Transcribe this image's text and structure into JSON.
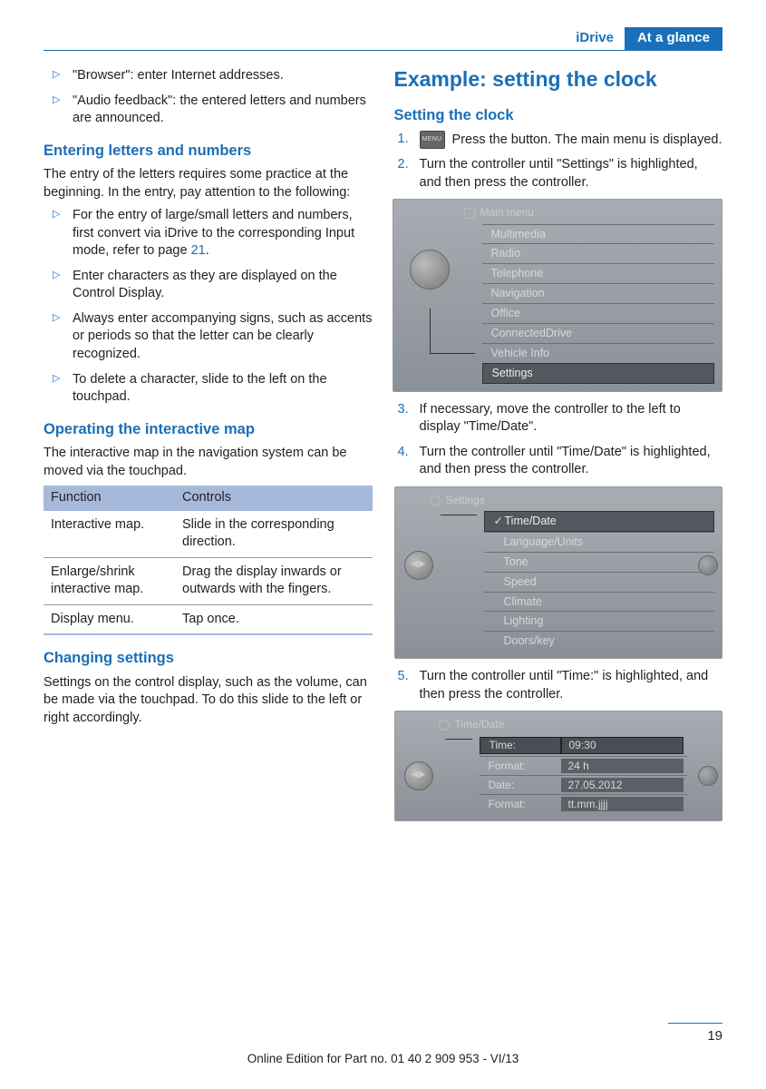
{
  "header": {
    "left": "iDrive",
    "right": "At a glance"
  },
  "left_col": {
    "top_bullets": [
      "\"Browser\": enter Internet addresses.",
      "\"Audio feedback\": the entered letters and numbers are announced."
    ],
    "sec1": {
      "title": "Entering letters and numbers",
      "intro": "The entry of the letters requires some practice at the beginning. In the entry, pay attention to the following:",
      "bullets": [
        {
          "text": "For the entry of large/small letters and numbers, first convert via iDrive to the corresponding Input mode, refer to page ",
          "link": "21",
          "after": "."
        },
        {
          "text": "Enter characters as they are displayed on the Control Display."
        },
        {
          "text": "Always enter accompanying signs, such as accents or periods so that the letter can be clearly recognized."
        },
        {
          "text": "To delete a character, slide to the left on the touchpad."
        }
      ]
    },
    "sec2": {
      "title": "Operating the interactive map",
      "intro": "The interactive map in the navigation system can be moved via the touchpad.",
      "table": {
        "headers": [
          "Function",
          "Controls"
        ],
        "rows": [
          [
            "Interactive map.",
            "Slide in the corresponding direction."
          ],
          [
            "Enlarge/shrink interactive map.",
            "Drag the display inwards or outwards with the fingers."
          ],
          [
            "Display menu.",
            "Tap once."
          ]
        ]
      }
    },
    "sec3": {
      "title": "Changing settings",
      "body": "Settings on the control display, such as the volume, can be made via the touchpad. To do this slide to the left or right accordingly."
    }
  },
  "right_col": {
    "title": "Example: setting the clock",
    "subtitle": "Setting the clock",
    "steps": {
      "s1": {
        "num": "1.",
        "icon": "MENU",
        "text": "Press the button. The main menu is displayed."
      },
      "s2": {
        "num": "2.",
        "text": "Turn the controller until \"Settings\" is highlighted, and then press the controller."
      },
      "s3": {
        "num": "3.",
        "text": "If necessary, move the controller to the left to display \"Time/Date\"."
      },
      "s4": {
        "num": "4.",
        "text": "Turn the controller until \"Time/Date\" is highlighted, and then press the controller."
      },
      "s5": {
        "num": "5.",
        "text": "Turn the controller until \"Time:\" is highlighted, and then press the controller."
      }
    },
    "screen1": {
      "title": "Main menu",
      "items": [
        "Multimedia",
        "Radio",
        "Telephone",
        "Navigation",
        "Office",
        "ConnectedDrive",
        "Vehicle Info",
        "Settings"
      ],
      "selected": "Settings"
    },
    "screen2": {
      "title": "Settings",
      "items": [
        "Time/Date",
        "Language/Units",
        "Tone",
        "Speed",
        "Climate",
        "Lighting",
        "Doors/key"
      ],
      "selected": "Time/Date"
    },
    "screen3": {
      "title": "Time/Date",
      "rows": [
        {
          "label": "Time:",
          "value": "09:30",
          "selected": true
        },
        {
          "label": "Format:",
          "value": "24 h"
        },
        {
          "label": "Date:",
          "value": "27.05.2012"
        },
        {
          "label": "Format:",
          "value": "tt.mm.jjjj"
        }
      ]
    }
  },
  "page_number": "19",
  "footer": "Online Edition for Part no. 01 40 2 909 953 - VI/13"
}
